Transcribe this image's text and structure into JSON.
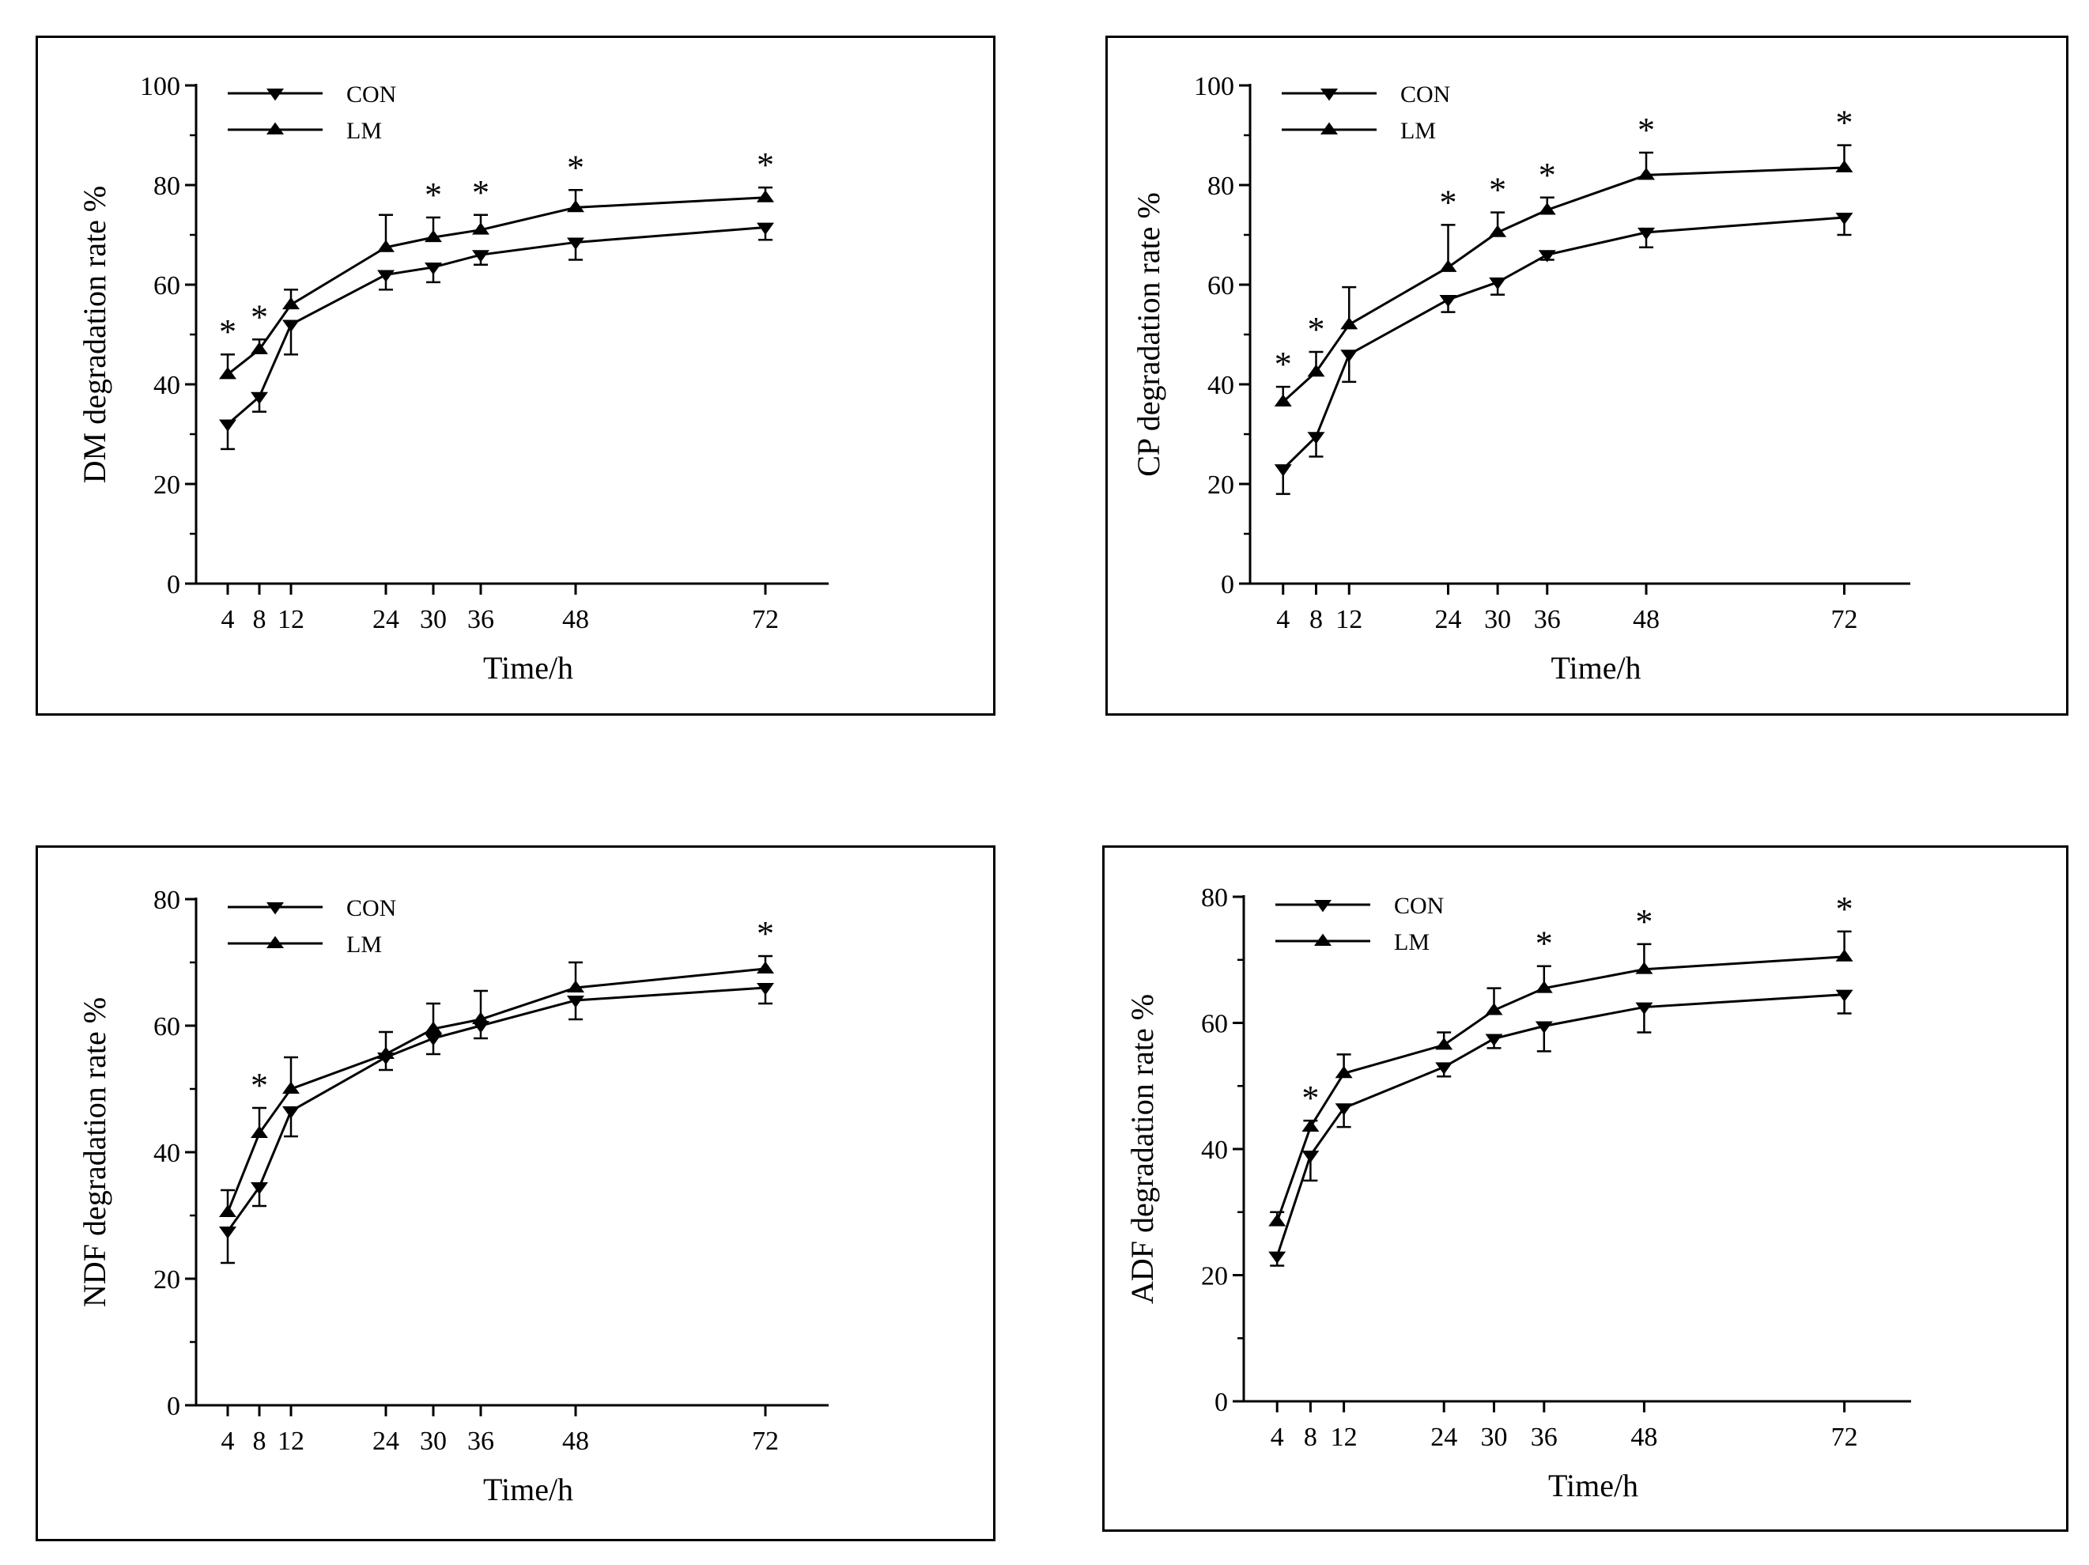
{
  "chart_data": [
    {
      "type": "line",
      "id": "dm",
      "title": "",
      "xlabel": "Time/h",
      "ylabel": "DM degradation rate %",
      "x": [
        4,
        8,
        12,
        24,
        30,
        36,
        48,
        72
      ],
      "xlim": [
        0,
        80
      ],
      "ylim": [
        0,
        100
      ],
      "yticks": [
        0,
        20,
        40,
        60,
        80,
        100
      ],
      "legend_position": "top-left",
      "series": [
        {
          "name": "CON",
          "marker": "triangle-down",
          "values": [
            32,
            37.5,
            52,
            62,
            63.5,
            66,
            68.5,
            71.5
          ],
          "errors": [
            5,
            3,
            6,
            3,
            3,
            2,
            3.5,
            2.5
          ]
        },
        {
          "name": "LM",
          "marker": "triangle-up",
          "values": [
            42,
            47,
            56,
            67.5,
            69.5,
            71,
            75.5,
            77.5
          ],
          "errors": [
            4,
            2,
            3,
            6.5,
            4,
            3,
            3.5,
            2
          ]
        }
      ],
      "significant_x": [
        4,
        8,
        30,
        36,
        48,
        72
      ],
      "significance_symbol": "*"
    },
    {
      "type": "line",
      "id": "cp",
      "title": "",
      "xlabel": "Time/h",
      "ylabel": "CP degradation rate %",
      "x": [
        4,
        8,
        12,
        24,
        30,
        36,
        48,
        72
      ],
      "xlim": [
        0,
        80
      ],
      "ylim": [
        0,
        100
      ],
      "yticks": [
        0,
        20,
        40,
        60,
        80,
        100
      ],
      "legend_position": "top-left",
      "series": [
        {
          "name": "CON",
          "marker": "triangle-down",
          "values": [
            23,
            29.5,
            46,
            57,
            60.5,
            66,
            70.5,
            73.5
          ],
          "errors": [
            5,
            4,
            5.5,
            2.5,
            2.5,
            1,
            3,
            3.5
          ]
        },
        {
          "name": "LM",
          "marker": "triangle-up",
          "values": [
            36.5,
            42.5,
            52,
            63.5,
            70.5,
            75,
            82,
            83.5
          ],
          "errors": [
            3,
            4,
            7.5,
            8.5,
            4,
            2.5,
            4.5,
            4.5
          ]
        }
      ],
      "significant_x": [
        4,
        8,
        24,
        30,
        36,
        48,
        72
      ],
      "significance_symbol": "*"
    },
    {
      "type": "line",
      "id": "ndf",
      "title": "",
      "xlabel": "Time/h",
      "ylabel": "NDF degradation rate %",
      "x": [
        4,
        8,
        12,
        24,
        30,
        36,
        48,
        72
      ],
      "xlim": [
        0,
        80
      ],
      "ylim": [
        0,
        80
      ],
      "yticks": [
        0,
        20,
        40,
        60,
        80
      ],
      "legend_position": "top-left",
      "series": [
        {
          "name": "CON",
          "marker": "triangle-down",
          "values": [
            27.5,
            34.5,
            46.5,
            55,
            58,
            60,
            64,
            66
          ],
          "errors": [
            5,
            3,
            4,
            2,
            2.5,
            2,
            3,
            2.5
          ]
        },
        {
          "name": "LM",
          "marker": "triangle-up",
          "values": [
            30.5,
            43,
            50,
            55.5,
            59.5,
            61,
            66,
            69
          ],
          "errors": [
            3.5,
            4,
            5,
            3.5,
            4,
            4.5,
            4,
            2
          ]
        }
      ],
      "significant_x": [
        8,
        72
      ],
      "significance_symbol": "*"
    },
    {
      "type": "line",
      "id": "adf",
      "title": "",
      "xlabel": "Time/h",
      "ylabel": "ADF degradation rate %",
      "x": [
        4,
        8,
        12,
        24,
        30,
        36,
        48,
        72
      ],
      "xlim": [
        0,
        80
      ],
      "ylim": [
        0,
        80
      ],
      "yticks": [
        0,
        20,
        40,
        60,
        80
      ],
      "legend_position": "top-left",
      "series": [
        {
          "name": "CON",
          "marker": "triangle-down",
          "values": [
            23,
            39,
            46.5,
            53,
            57.5,
            59.5,
            62.5,
            64.5
          ],
          "errors": [
            1.5,
            4,
            3,
            1.5,
            1.5,
            4,
            4,
            3
          ]
        },
        {
          "name": "LM",
          "marker": "triangle-up",
          "values": [
            28.5,
            43.5,
            52,
            56.5,
            62,
            65.5,
            68.5,
            70.5
          ],
          "errors": [
            1.5,
            1,
            3,
            2,
            3.5,
            3.5,
            4,
            4
          ]
        }
      ],
      "significant_x": [
        8,
        36,
        48,
        72
      ],
      "significance_symbol": "*"
    }
  ]
}
